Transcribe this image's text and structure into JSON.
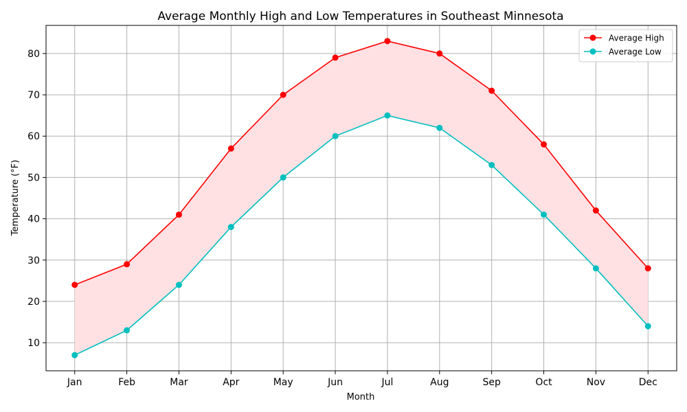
{
  "chart_data": {
    "type": "line",
    "title": "Average Monthly High and Low Temperatures in Southeast Minnesota",
    "xlabel": "Month",
    "ylabel": "Temperature (°F)",
    "categories": [
      "Jan",
      "Feb",
      "Mar",
      "Apr",
      "May",
      "Jun",
      "Jul",
      "Aug",
      "Sep",
      "Oct",
      "Nov",
      "Dec"
    ],
    "series": [
      {
        "name": "Average High",
        "values": [
          24,
          29,
          41,
          57,
          70,
          79,
          83,
          80,
          71,
          58,
          42,
          28
        ],
        "color": "#ff0000"
      },
      {
        "name": "Average Low",
        "values": [
          7,
          13,
          24,
          38,
          50,
          60,
          65,
          62,
          53,
          41,
          28,
          14
        ],
        "color": "#00bfbf"
      }
    ],
    "fill_between": {
      "color": "#ffe0e3"
    },
    "ylim": [
      3.2,
      86.8
    ],
    "yticks": [
      10,
      20,
      30,
      40,
      50,
      60,
      70,
      80
    ],
    "grid": true,
    "legend_position": "top-right"
  }
}
